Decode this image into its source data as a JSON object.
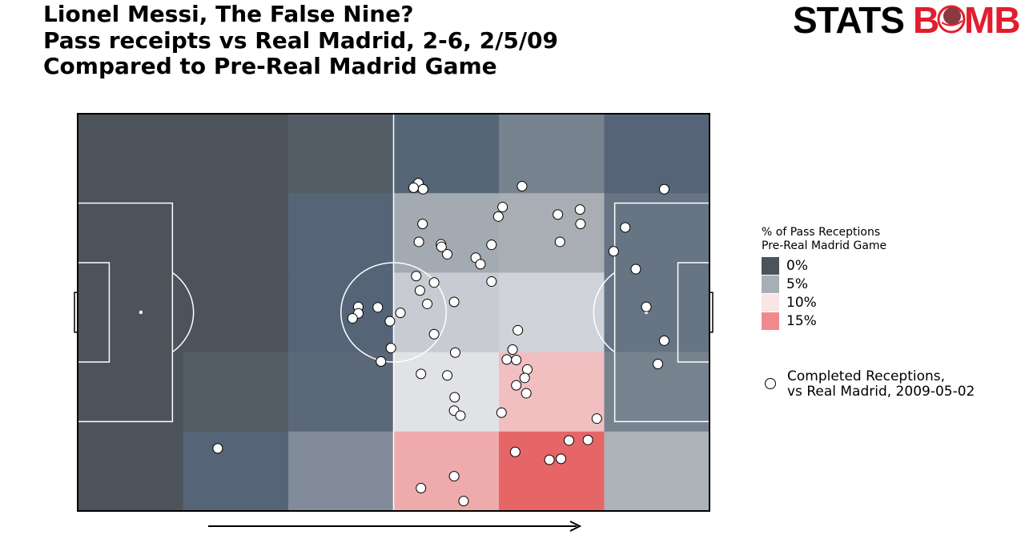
{
  "title": {
    "line1": "Lionel Messi, The False Nine?",
    "line2": "Pass receipts vs Real Madrid, 2-6, 2/5/09",
    "line3": "Compared to Pre-Real Madrid Game"
  },
  "logo": {
    "part1": "STATS",
    "part2": "B",
    "part3": "MB",
    "color_dark": "#000000",
    "color_brand": "#e11d2e"
  },
  "legend": {
    "title_line1": "% of Pass Receptions",
    "title_line2": "Pre-Real Madrid Game",
    "entries": [
      {
        "label": "0%",
        "color": "#4c535a"
      },
      {
        "label": "5%",
        "color": "#a8aeb5"
      },
      {
        "label": "10%",
        "color": "#f9e4e6"
      },
      {
        "label": "15%",
        "color": "#ef8a8c"
      }
    ],
    "marker_line1": "Completed Receptions,",
    "marker_line2": "vs Real Madrid, 2009-05-02"
  },
  "chart_data": {
    "type": "heatmap",
    "pitch": {
      "length": 120,
      "width": 80,
      "attack_direction": "left-to-right"
    },
    "grid": {
      "columns": 6,
      "rows": 5
    },
    "heatmap_colors": [
      [
        "#4c535a",
        "#4c535a",
        "#545c66",
        "#556677",
        "#77828f",
        "#556577"
      ],
      [
        "#4c535a",
        "#4c535a",
        "#556577",
        "#a3aab1",
        "#a9aeb4",
        "#667483"
      ],
      [
        "#4c535a",
        "#4c535a",
        "#556577",
        "#c8ccd2",
        "#d0d3d9",
        "#667483"
      ],
      [
        "#4c535a",
        "#545c66",
        "#5b6879",
        "#e0e2e6",
        "#f2bfc1",
        "#77828f"
      ],
      [
        "#4c535a",
        "#556577",
        "#818b99",
        "#efaaac",
        "#e66668",
        "#adb3b9"
      ]
    ],
    "receptions": [
      [
        64.7,
        14.0
      ],
      [
        63.8,
        14.9
      ],
      [
        65.6,
        15.2
      ],
      [
        84.4,
        14.6
      ],
      [
        111.4,
        15.2
      ],
      [
        80.7,
        18.8
      ],
      [
        79.9,
        20.7
      ],
      [
        91.2,
        20.3
      ],
      [
        95.4,
        19.3
      ],
      [
        95.5,
        22.2
      ],
      [
        65.5,
        22.2
      ],
      [
        104.0,
        22.9
      ],
      [
        64.8,
        25.8
      ],
      [
        69.0,
        26.3
      ],
      [
        69.1,
        26.8
      ],
      [
        78.6,
        26.4
      ],
      [
        101.8,
        27.7
      ],
      [
        91.6,
        25.8
      ],
      [
        70.2,
        28.3
      ],
      [
        75.6,
        29.0
      ],
      [
        76.5,
        30.3
      ],
      [
        106.0,
        31.3
      ],
      [
        64.3,
        32.7
      ],
      [
        67.7,
        34.0
      ],
      [
        65.0,
        35.6
      ],
      [
        78.6,
        33.8
      ],
      [
        66.4,
        38.3
      ],
      [
        71.5,
        37.9
      ],
      [
        108.0,
        38.9
      ],
      [
        53.3,
        38.9
      ],
      [
        57.0,
        39.0
      ],
      [
        53.3,
        40.2
      ],
      [
        61.3,
        40.1
      ],
      [
        52.2,
        41.2
      ],
      [
        59.3,
        41.8
      ],
      [
        83.6,
        43.6
      ],
      [
        67.7,
        44.4
      ],
      [
        111.4,
        45.7
      ],
      [
        59.5,
        47.2
      ],
      [
        82.6,
        47.5
      ],
      [
        71.7,
        48.1
      ],
      [
        81.5,
        49.5
      ],
      [
        83.3,
        49.6
      ],
      [
        57.6,
        49.9
      ],
      [
        110.2,
        50.4
      ],
      [
        85.4,
        51.5
      ],
      [
        65.2,
        52.4
      ],
      [
        70.2,
        52.7
      ],
      [
        84.9,
        53.2
      ],
      [
        83.3,
        54.7
      ],
      [
        85.2,
        56.3
      ],
      [
        71.6,
        57.1
      ],
      [
        71.5,
        59.8
      ],
      [
        72.7,
        60.8
      ],
      [
        80.5,
        60.2
      ],
      [
        98.6,
        61.4
      ],
      [
        26.6,
        67.4
      ],
      [
        93.3,
        65.8
      ],
      [
        96.9,
        65.7
      ],
      [
        83.1,
        68.1
      ],
      [
        89.6,
        69.7
      ],
      [
        91.8,
        69.5
      ],
      [
        71.5,
        73.0
      ],
      [
        65.2,
        75.4
      ],
      [
        73.3,
        78.0
      ]
    ]
  }
}
